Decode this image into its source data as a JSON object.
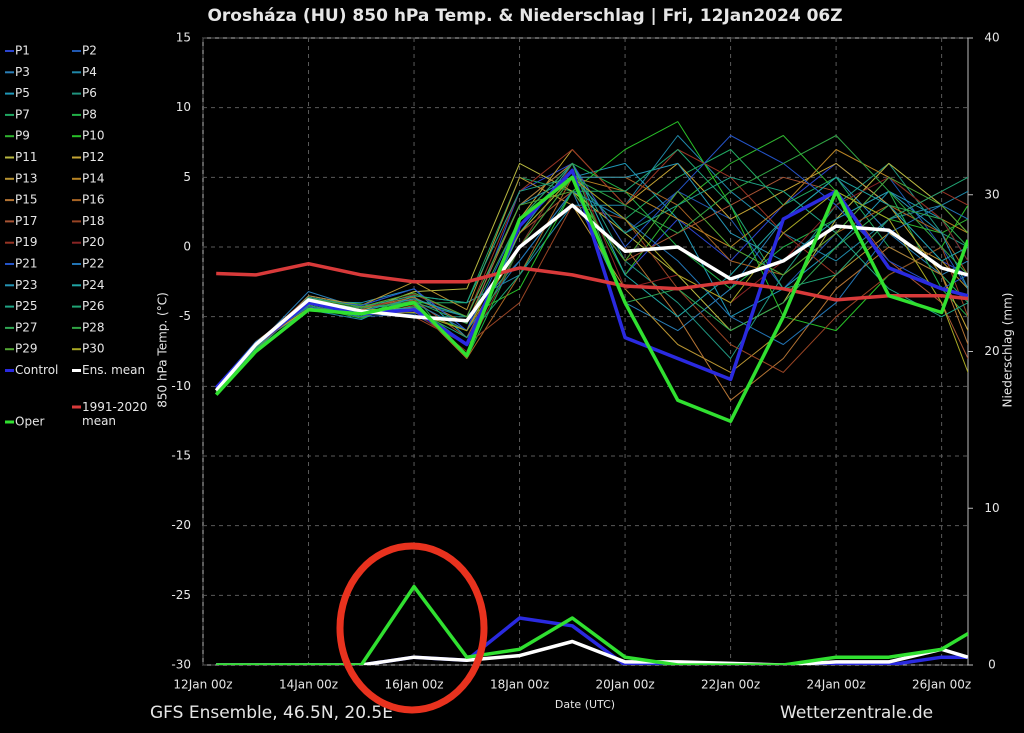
{
  "chart_data": {
    "type": "line",
    "title": "Orosháza  (HU)  850 hPa Temp. & Niederschlag | Fri, 12Jan2024 06Z",
    "y_label": "850 hPa Temp. (°C)",
    "y2_label": "Niederschlag (mm)",
    "x_label": "Date (UTC)",
    "footer_left": "GFS Ensemble, 46.5N, 20.5E",
    "footer_right": "Wetterzentrale.de",
    "xlim": [
      0,
      14.5
    ],
    "xticks": [
      {
        "value": 0,
        "label": "12Jan 00z"
      },
      {
        "value": 2,
        "label": "14Jan 00z"
      },
      {
        "value": 4,
        "label": "16Jan 00z"
      },
      {
        "value": 6,
        "label": "18Jan 00z"
      },
      {
        "value": 8,
        "label": "20Jan 00z"
      },
      {
        "value": 10,
        "label": "22Jan 00z"
      },
      {
        "value": 12,
        "label": "24Jan 00z"
      },
      {
        "value": 14,
        "label": "26Jan 00z"
      }
    ],
    "ylim": [
      -30,
      15
    ],
    "yticks": [
      -30,
      -25,
      -20,
      -15,
      -10,
      -5,
      0,
      5,
      10,
      15
    ],
    "y2lim": [
      0,
      40
    ],
    "y2ticks": [
      0,
      10,
      20,
      30,
      40
    ],
    "grid": true,
    "x": [
      0.25,
      1,
      2,
      3,
      4,
      5,
      6,
      7,
      8,
      9,
      10,
      11,
      12,
      13,
      14,
      14.5
    ],
    "series": [
      {
        "name": "P1",
        "color": "#2b45d0",
        "values": [
          -10.2,
          -7.2,
          -3.5,
          -4.2,
          -3,
          -6,
          4,
          6,
          -2,
          2,
          -1,
          3,
          6,
          3,
          -1,
          -2
        ]
      },
      {
        "name": "P2",
        "color": "#2058b0",
        "values": [
          -10,
          -6.8,
          -4.2,
          -5,
          -4.8,
          -7,
          2,
          5,
          1,
          4,
          2,
          -3,
          1,
          5,
          0,
          -3
        ]
      },
      {
        "name": "P3",
        "color": "#2a7fb8",
        "values": [
          -10.4,
          -7.1,
          -3.2,
          -4.4,
          -4,
          -5,
          -1,
          4,
          -4,
          -6,
          -3,
          2,
          5,
          1,
          -2,
          -1
        ]
      },
      {
        "name": "P4",
        "color": "#2088a8",
        "values": [
          -10.1,
          -7,
          -4.5,
          -5.2,
          -3.5,
          -4,
          -2,
          3,
          3,
          8,
          4,
          1,
          -1,
          2,
          3,
          4
        ]
      },
      {
        "name": "P5",
        "color": "#1f98b8",
        "values": [
          -10.3,
          -7.4,
          -3.9,
          -4,
          -3,
          -6.5,
          1,
          5,
          6,
          2,
          -5,
          -3,
          0,
          4,
          2,
          -1
        ]
      },
      {
        "name": "P6",
        "color": "#20947f",
        "values": [
          -10.2,
          -6.9,
          -4.1,
          -4.7,
          -5,
          -5,
          3,
          6,
          -1,
          -4,
          -8,
          -2,
          3,
          6,
          1,
          0
        ]
      },
      {
        "name": "P7",
        "color": "#20a862",
        "values": [
          -10.5,
          -7.3,
          -3.6,
          -4.3,
          -4,
          -4,
          5,
          4,
          2,
          5,
          7,
          3,
          5,
          0,
          -2,
          -4
        ]
      },
      {
        "name": "P8",
        "color": "#22b048",
        "values": [
          -10,
          -7,
          -4,
          -4.9,
          -3.5,
          -8,
          0,
          6,
          4,
          0,
          -3,
          0,
          2,
          4,
          -3,
          -5
        ]
      },
      {
        "name": "P9",
        "color": "#30b530",
        "values": [
          -10.4,
          -7.2,
          -3.7,
          -4.1,
          -4.5,
          -6,
          1,
          5,
          -2,
          3,
          6,
          8,
          4,
          2,
          1,
          2
        ]
      },
      {
        "name": "P10",
        "color": "#28c028",
        "values": [
          -10.3,
          -6.9,
          -4.3,
          -5.1,
          -3.8,
          -5,
          -3,
          4,
          7,
          9,
          3,
          -5,
          -6,
          -2,
          0,
          3
        ]
      },
      {
        "name": "P11",
        "color": "#b8b840",
        "values": [
          -10.1,
          -7.1,
          -3.8,
          -4.6,
          -3.2,
          -3,
          6,
          4,
          1,
          -2,
          -6,
          -4,
          2,
          6,
          3,
          1
        ]
      },
      {
        "name": "P12",
        "color": "#c4a434",
        "values": [
          -10.2,
          -7,
          -4.4,
          -4.5,
          -4.4,
          -7,
          2,
          7,
          3,
          6,
          2,
          4,
          6,
          3,
          -2,
          -6
        ]
      },
      {
        "name": "P13",
        "color": "#b89432",
        "values": [
          -10.5,
          -7.2,
          -3.5,
          -4.2,
          -2.5,
          -4.5,
          5,
          3,
          -3,
          -7,
          -9,
          -6,
          -2,
          1,
          -1,
          -3
        ]
      },
      {
        "name": "P14",
        "color": "#b88424",
        "values": [
          -10.3,
          -6.8,
          -4,
          -4.8,
          -4,
          -6,
          0,
          5,
          4,
          2,
          0,
          3,
          7,
          5,
          2,
          1
        ]
      },
      {
        "name": "P15",
        "color": "#b47434",
        "values": [
          -10.2,
          -7.3,
          -3.9,
          -4.4,
          -3.6,
          -5.5,
          3,
          6,
          0,
          -5,
          -11,
          -8,
          -3,
          0,
          -2,
          -7
        ]
      },
      {
        "name": "P16",
        "color": "#a86424",
        "values": [
          -10,
          -7.1,
          -4.2,
          -5,
          -4.2,
          -8,
          -2,
          5,
          5,
          3,
          -1,
          -2,
          1,
          3,
          1,
          -2
        ]
      },
      {
        "name": "P17",
        "color": "#a85434",
        "values": [
          -10.4,
          -6.9,
          -3.6,
          -4.3,
          -3.8,
          -6.5,
          1,
          4,
          -1,
          1,
          3,
          5,
          4,
          -1,
          -4,
          -8
        ]
      },
      {
        "name": "P18",
        "color": "#984424",
        "values": [
          -10.1,
          -7.2,
          -4.1,
          -4.7,
          -5,
          -7,
          -4,
          3,
          2,
          -3,
          -7,
          -9,
          -5,
          -2,
          0,
          -5
        ]
      },
      {
        "name": "P19",
        "color": "#983424",
        "values": [
          -10.3,
          -7,
          -3.8,
          -4.5,
          -3.4,
          -5,
          4,
          7,
          3,
          7,
          5,
          1,
          -2,
          2,
          4,
          3
        ]
      },
      {
        "name": "P20",
        "color": "#882424",
        "values": [
          -10.2,
          -7.1,
          -4,
          -4.6,
          -4.6,
          -7.5,
          0,
          6,
          -3,
          -2,
          -4,
          -1,
          3,
          5,
          2,
          -1
        ]
      },
      {
        "name": "P21",
        "color": "#2454c8",
        "values": [
          -10.4,
          -7.2,
          -3.7,
          -4.2,
          -3,
          -6,
          2,
          6,
          0,
          4,
          8,
          6,
          3,
          -1,
          -3,
          -2
        ]
      },
      {
        "name": "P22",
        "color": "#2274b4",
        "values": [
          -10,
          -6.8,
          -4.3,
          -5,
          -4,
          -6,
          -1,
          4,
          2,
          -1,
          -5,
          -7,
          -4,
          1,
          3,
          2
        ]
      },
      {
        "name": "P23",
        "color": "#2594b4",
        "values": [
          -10.3,
          -7.1,
          -3.9,
          -4.6,
          -3.7,
          -5,
          3,
          5,
          5,
          6,
          1,
          -1,
          2,
          4,
          1,
          -3
        ]
      },
      {
        "name": "P24",
        "color": "#20a4a4",
        "values": [
          -10.1,
          -7,
          -4.1,
          -4.8,
          -4.3,
          -7,
          1,
          6,
          -2,
          -5,
          -2,
          2,
          5,
          3,
          -1,
          0
        ]
      },
      {
        "name": "P25",
        "color": "#20a486",
        "values": [
          -10.5,
          -7.3,
          -3.6,
          -4.3,
          -3.5,
          -4,
          4,
          5,
          1,
          3,
          5,
          4,
          1,
          -3,
          -5,
          -4
        ]
      },
      {
        "name": "P26",
        "color": "#20a474",
        "values": [
          -10.2,
          -6.9,
          -4.2,
          -4.9,
          -4.5,
          -6.5,
          -2,
          4,
          4,
          7,
          3,
          -3,
          -2,
          2,
          4,
          5
        ]
      },
      {
        "name": "P27",
        "color": "#30a854",
        "values": [
          -10.3,
          -7.2,
          -3.8,
          -4.4,
          -3.9,
          -5.5,
          2,
          6,
          -4,
          -3,
          -6,
          -4,
          0,
          3,
          2,
          0
        ]
      },
      {
        "name": "P28",
        "color": "#30a444",
        "values": [
          -10.1,
          -7,
          -4,
          -4.7,
          -4.1,
          -7,
          0,
          5,
          3,
          1,
          4,
          6,
          8,
          4,
          0,
          -2
        ]
      },
      {
        "name": "P29",
        "color": "#54a834",
        "values": [
          -10.4,
          -7.1,
          -3.7,
          -4.3,
          -3.3,
          -5,
          3,
          4,
          -1,
          4,
          0,
          -2,
          1,
          5,
          3,
          1
        ]
      },
      {
        "name": "P30",
        "color": "#a8a824",
        "values": [
          -10.2,
          -6.9,
          -4.1,
          -4.8,
          -4.7,
          -6,
          1,
          5,
          2,
          -2,
          -4,
          1,
          4,
          2,
          -4,
          -9
        ]
      },
      {
        "name": "Control",
        "color": "#2a2ae0",
        "highlight": true,
        "values": [
          -10.1,
          -7,
          -4,
          -4.8,
          -4.5,
          -7,
          1.5,
          5.5,
          -6.5,
          -8,
          -9.5,
          2,
          4,
          -1.5,
          -3,
          -3.5
        ],
        "precip": [
          0,
          0,
          0,
          0,
          0.5,
          0.3,
          3,
          2.5,
          0,
          0,
          0,
          0,
          0,
          0,
          0.5,
          0.5
        ]
      },
      {
        "name": "Ens. mean",
        "color": "#ffffff",
        "highlight": true,
        "values": [
          -10.3,
          -7,
          -3.8,
          -4.6,
          -5,
          -5.3,
          0,
          3,
          -0.3,
          0,
          -2.3,
          -1,
          1.5,
          1.2,
          -1.5,
          -2
        ],
        "precip": [
          0,
          0,
          0,
          0,
          0.5,
          0.3,
          0.6,
          1.5,
          0.2,
          0.2,
          0.1,
          0,
          0.2,
          0.2,
          1,
          0.5
        ]
      },
      {
        "name": "1991-2020 mean",
        "color": "#d83a3a",
        "highlight": true,
        "values": [
          -1.9,
          -2,
          -1.2,
          -2,
          -2.5,
          -2.5,
          -1.5,
          -2,
          -2.8,
          -3,
          -2.5,
          -3,
          -3.8,
          -3.5,
          -3.5,
          -3.7
        ]
      },
      {
        "name": "Oper",
        "color": "#30e030",
        "highlight": true,
        "values": [
          -10.6,
          -7.5,
          -4.5,
          -4.8,
          -4,
          -7.8,
          2,
          5,
          -4,
          -11,
          -12.5,
          -5,
          4,
          -3.5,
          -4.7,
          0.5
        ],
        "precip": [
          0,
          0,
          0,
          0,
          5,
          0.5,
          1,
          3,
          0.5,
          0,
          0,
          0,
          0.5,
          0.5,
          1,
          2
        ]
      }
    ]
  }
}
